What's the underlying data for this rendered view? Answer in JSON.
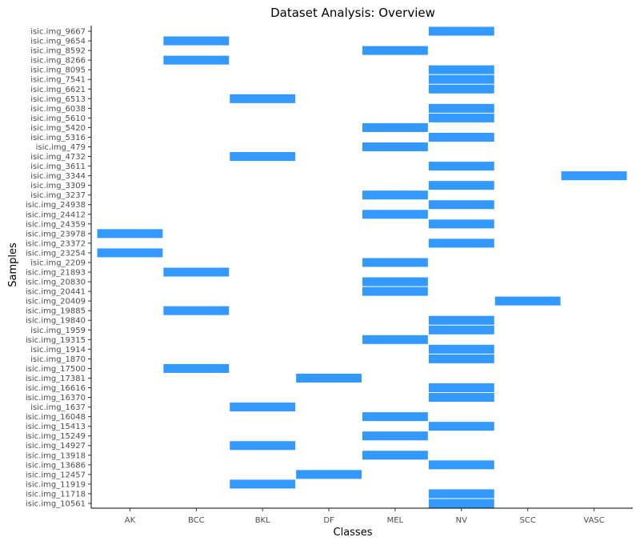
{
  "chart_data": {
    "type": "heatmap",
    "title": "Dataset Analysis: Overview",
    "xlabel": "Classes",
    "ylabel": "Samples",
    "x_categories": [
      "AK",
      "BCC",
      "BKL",
      "DF",
      "MEL",
      "NV",
      "SCC",
      "VASC"
    ],
    "y_categories": [
      "isic.img_9667",
      "isic.img_9654",
      "isic.img_8592",
      "isic.img_8266",
      "isic.img_8095",
      "isic.img_7541",
      "isic.img_6621",
      "isic.img_6513",
      "isic.img_6038",
      "isic.img_5610",
      "isic.img_5420",
      "isic.img_5316",
      "isic.img_479",
      "isic.img_4732",
      "isic.img_3611",
      "isic.img_3344",
      "isic.img_3309",
      "isic.img_3237",
      "isic.img_24938",
      "isic.img_24412",
      "isic.img_24359",
      "isic.img_23978",
      "isic.img_23372",
      "isic.img_23254",
      "isic.img_2209",
      "isic.img_21893",
      "isic.img_20830",
      "isic.img_20441",
      "isic.img_20409",
      "isic.img_19885",
      "isic.img_19840",
      "isic.img_1959",
      "isic.img_19315",
      "isic.img_1914",
      "isic.img_1870",
      "isic.img_17500",
      "isic.img_17381",
      "isic.img_16616",
      "isic.img_16370",
      "isic.img_1637",
      "isic.img_16048",
      "isic.img_15413",
      "isic.img_15249",
      "isic.img_14927",
      "isic.img_13918",
      "isic.img_13686",
      "isic.img_12457",
      "isic.img_11919",
      "isic.img_11718",
      "isic.img_10561"
    ],
    "cells": [
      {
        "sample": "isic.img_9667",
        "class": "NV"
      },
      {
        "sample": "isic.img_9654",
        "class": "BCC"
      },
      {
        "sample": "isic.img_8592",
        "class": "MEL"
      },
      {
        "sample": "isic.img_8266",
        "class": "BCC"
      },
      {
        "sample": "isic.img_8095",
        "class": "NV"
      },
      {
        "sample": "isic.img_7541",
        "class": "NV"
      },
      {
        "sample": "isic.img_6621",
        "class": "NV"
      },
      {
        "sample": "isic.img_6513",
        "class": "BKL"
      },
      {
        "sample": "isic.img_6038",
        "class": "NV"
      },
      {
        "sample": "isic.img_5610",
        "class": "NV"
      },
      {
        "sample": "isic.img_5420",
        "class": "MEL"
      },
      {
        "sample": "isic.img_5316",
        "class": "NV"
      },
      {
        "sample": "isic.img_479",
        "class": "MEL"
      },
      {
        "sample": "isic.img_4732",
        "class": "BKL"
      },
      {
        "sample": "isic.img_3611",
        "class": "NV"
      },
      {
        "sample": "isic.img_3344",
        "class": "VASC"
      },
      {
        "sample": "isic.img_3309",
        "class": "NV"
      },
      {
        "sample": "isic.img_3237",
        "class": "MEL"
      },
      {
        "sample": "isic.img_24938",
        "class": "NV"
      },
      {
        "sample": "isic.img_24412",
        "class": "MEL"
      },
      {
        "sample": "isic.img_24359",
        "class": "NV"
      },
      {
        "sample": "isic.img_23978",
        "class": "AK"
      },
      {
        "sample": "isic.img_23372",
        "class": "NV"
      },
      {
        "sample": "isic.img_23254",
        "class": "AK"
      },
      {
        "sample": "isic.img_2209",
        "class": "MEL"
      },
      {
        "sample": "isic.img_21893",
        "class": "BCC"
      },
      {
        "sample": "isic.img_20830",
        "class": "MEL"
      },
      {
        "sample": "isic.img_20441",
        "class": "MEL"
      },
      {
        "sample": "isic.img_20409",
        "class": "SCC"
      },
      {
        "sample": "isic.img_19885",
        "class": "BCC"
      },
      {
        "sample": "isic.img_19840",
        "class": "NV"
      },
      {
        "sample": "isic.img_1959",
        "class": "NV"
      },
      {
        "sample": "isic.img_19315",
        "class": "MEL"
      },
      {
        "sample": "isic.img_1914",
        "class": "NV"
      },
      {
        "sample": "isic.img_1870",
        "class": "NV"
      },
      {
        "sample": "isic.img_17500",
        "class": "BCC"
      },
      {
        "sample": "isic.img_17381",
        "class": "DF"
      },
      {
        "sample": "isic.img_16616",
        "class": "NV"
      },
      {
        "sample": "isic.img_16370",
        "class": "NV"
      },
      {
        "sample": "isic.img_1637",
        "class": "BKL"
      },
      {
        "sample": "isic.img_16048",
        "class": "MEL"
      },
      {
        "sample": "isic.img_15413",
        "class": "NV"
      },
      {
        "sample": "isic.img_15249",
        "class": "MEL"
      },
      {
        "sample": "isic.img_14927",
        "class": "BKL"
      },
      {
        "sample": "isic.img_13918",
        "class": "MEL"
      },
      {
        "sample": "isic.img_13686",
        "class": "NV"
      },
      {
        "sample": "isic.img_12457",
        "class": "DF"
      },
      {
        "sample": "isic.img_11919",
        "class": "BKL"
      },
      {
        "sample": "isic.img_11718",
        "class": "NV"
      },
      {
        "sample": "isic.img_10561",
        "class": "NV"
      }
    ],
    "cell_color": "#3399ff",
    "grid": false,
    "legend": "none"
  }
}
